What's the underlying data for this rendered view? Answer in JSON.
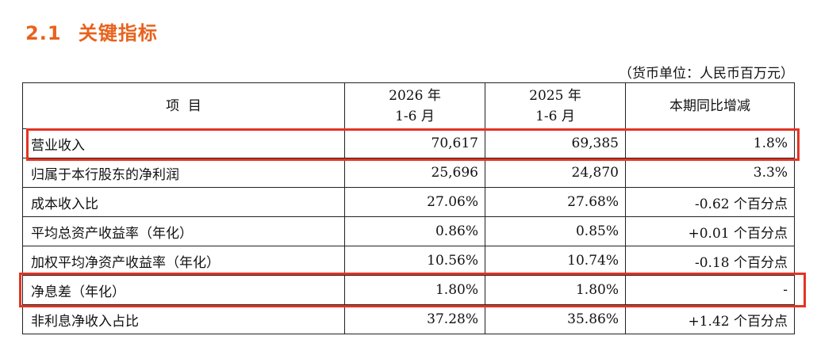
{
  "section": {
    "number": "2.1",
    "title": "关键指标"
  },
  "unit_note": "（货币单位：人民币百万元）",
  "table": {
    "headers": {
      "item": "项  目",
      "col_2026_year": "2026 年",
      "col_2026_period": "1-6 月",
      "col_2025_year": "2025 年",
      "col_2025_period": "1-6 月",
      "change": "本期同比增减"
    },
    "rows": [
      {
        "item": "营业收入",
        "v2026": "70,617",
        "v2025": "69,385",
        "change": "1.8%"
      },
      {
        "item": "归属于本行股东的净利润",
        "v2026": "25,696",
        "v2025": "24,870",
        "change": "3.3%"
      },
      {
        "item": "成本收入比",
        "v2026": "27.06%",
        "v2025": "27.68%",
        "change": "-0.62 个百分点"
      },
      {
        "item": "平均总资产收益率（年化）",
        "v2026": "0.86%",
        "v2025": "0.85%",
        "change": "+0.01 个百分点"
      },
      {
        "item": "加权平均净资产收益率（年化）",
        "v2026": "10.56%",
        "v2025": "10.74%",
        "change": "-0.18 个百分点"
      },
      {
        "item": "净息差（年化）",
        "v2026": "1.80%",
        "v2025": "1.80%",
        "change": "-"
      },
      {
        "item": "非利息净收入占比",
        "v2026": "37.28%",
        "v2025": "35.86%",
        "change": "+1.42 个百分点"
      }
    ]
  },
  "highlight_color": "#e53323",
  "title_color": "#e8621c"
}
